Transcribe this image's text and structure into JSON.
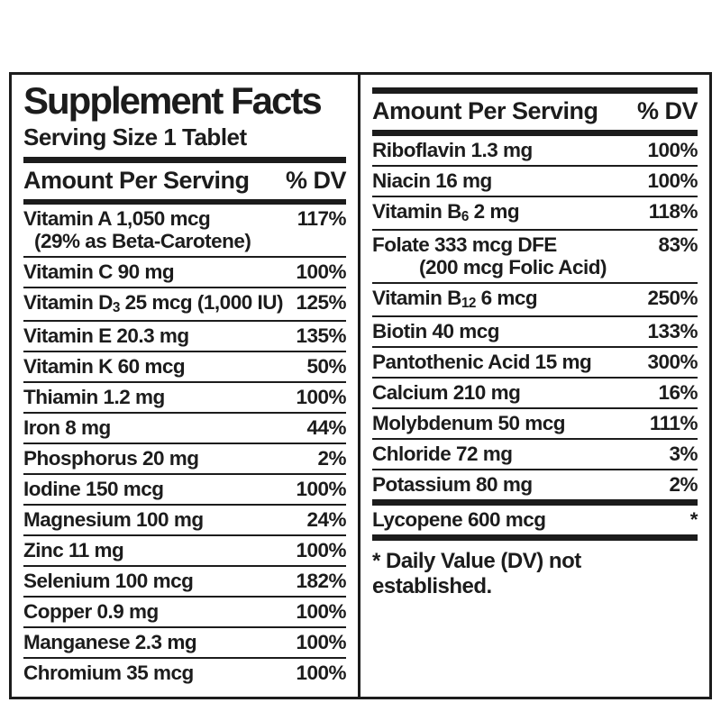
{
  "panel": {
    "title": "Supplement Facts",
    "serving_size": "Serving Size 1 Tablet",
    "column_header": {
      "amount": "Amount Per Serving",
      "dv": "% DV"
    }
  },
  "left_rows": [
    {
      "name": "Vitamin A 1,050 mcg",
      "sub_line": "(29% as Beta-Carotene)",
      "dv": "117%"
    },
    {
      "name": "Vitamin C 90 mg",
      "dv": "100%"
    },
    {
      "name": "Vitamin D~3~ 25 mcg (1,000 IU)",
      "dv": "125%"
    },
    {
      "name": "Vitamin E 20.3 mg",
      "dv": "135%"
    },
    {
      "name": "Vitamin K 60 mcg",
      "dv": "50%"
    },
    {
      "name": "Thiamin 1.2 mg",
      "dv": "100%"
    },
    {
      "name": "Iron 8 mg",
      "dv": "44%"
    },
    {
      "name": "Phosphorus 20 mg",
      "dv": "2%"
    },
    {
      "name": "Iodine 150 mcg",
      "dv": "100%"
    },
    {
      "name": "Magnesium 100 mg",
      "dv": "24%"
    },
    {
      "name": "Zinc 11 mg",
      "dv": "100%"
    },
    {
      "name": "Selenium 100 mcg",
      "dv": "182%"
    },
    {
      "name": "Copper 0.9 mg",
      "dv": "100%"
    },
    {
      "name": "Manganese 2.3 mg",
      "dv": "100%"
    },
    {
      "name": "Chromium 35 mcg",
      "dv": "100%"
    }
  ],
  "right_rows": [
    {
      "name": "Riboflavin 1.3 mg",
      "dv": "100%"
    },
    {
      "name": "Niacin 16 mg",
      "dv": "100%"
    },
    {
      "name": "Vitamin B~6~ 2 mg",
      "dv": "118%"
    },
    {
      "name": "Folate 333 mcg DFE",
      "sub_line": "(200 mcg Folic Acid)",
      "dv": "83%"
    },
    {
      "name": "Vitamin B~12~ 6 mcg",
      "dv": "250%"
    },
    {
      "name": "Biotin 40 mcg",
      "dv": "133%"
    },
    {
      "name": "Pantothenic Acid 15 mg",
      "dv": "300%"
    },
    {
      "name": "Calcium 210 mg",
      "dv": "16%"
    },
    {
      "name": "Molybdenum 50 mcg",
      "dv": "111%"
    },
    {
      "name": "Chloride 72 mg",
      "dv": "3%"
    },
    {
      "name": "Potassium 80 mg",
      "dv": "2%"
    }
  ],
  "other_rows": [
    {
      "name": "Lycopene 600 mcg",
      "dv": "*"
    }
  ],
  "footnote": "* Daily Value (DV) not established.",
  "colors": {
    "ink": "#1c1c1c",
    "background": "#ffffff"
  }
}
